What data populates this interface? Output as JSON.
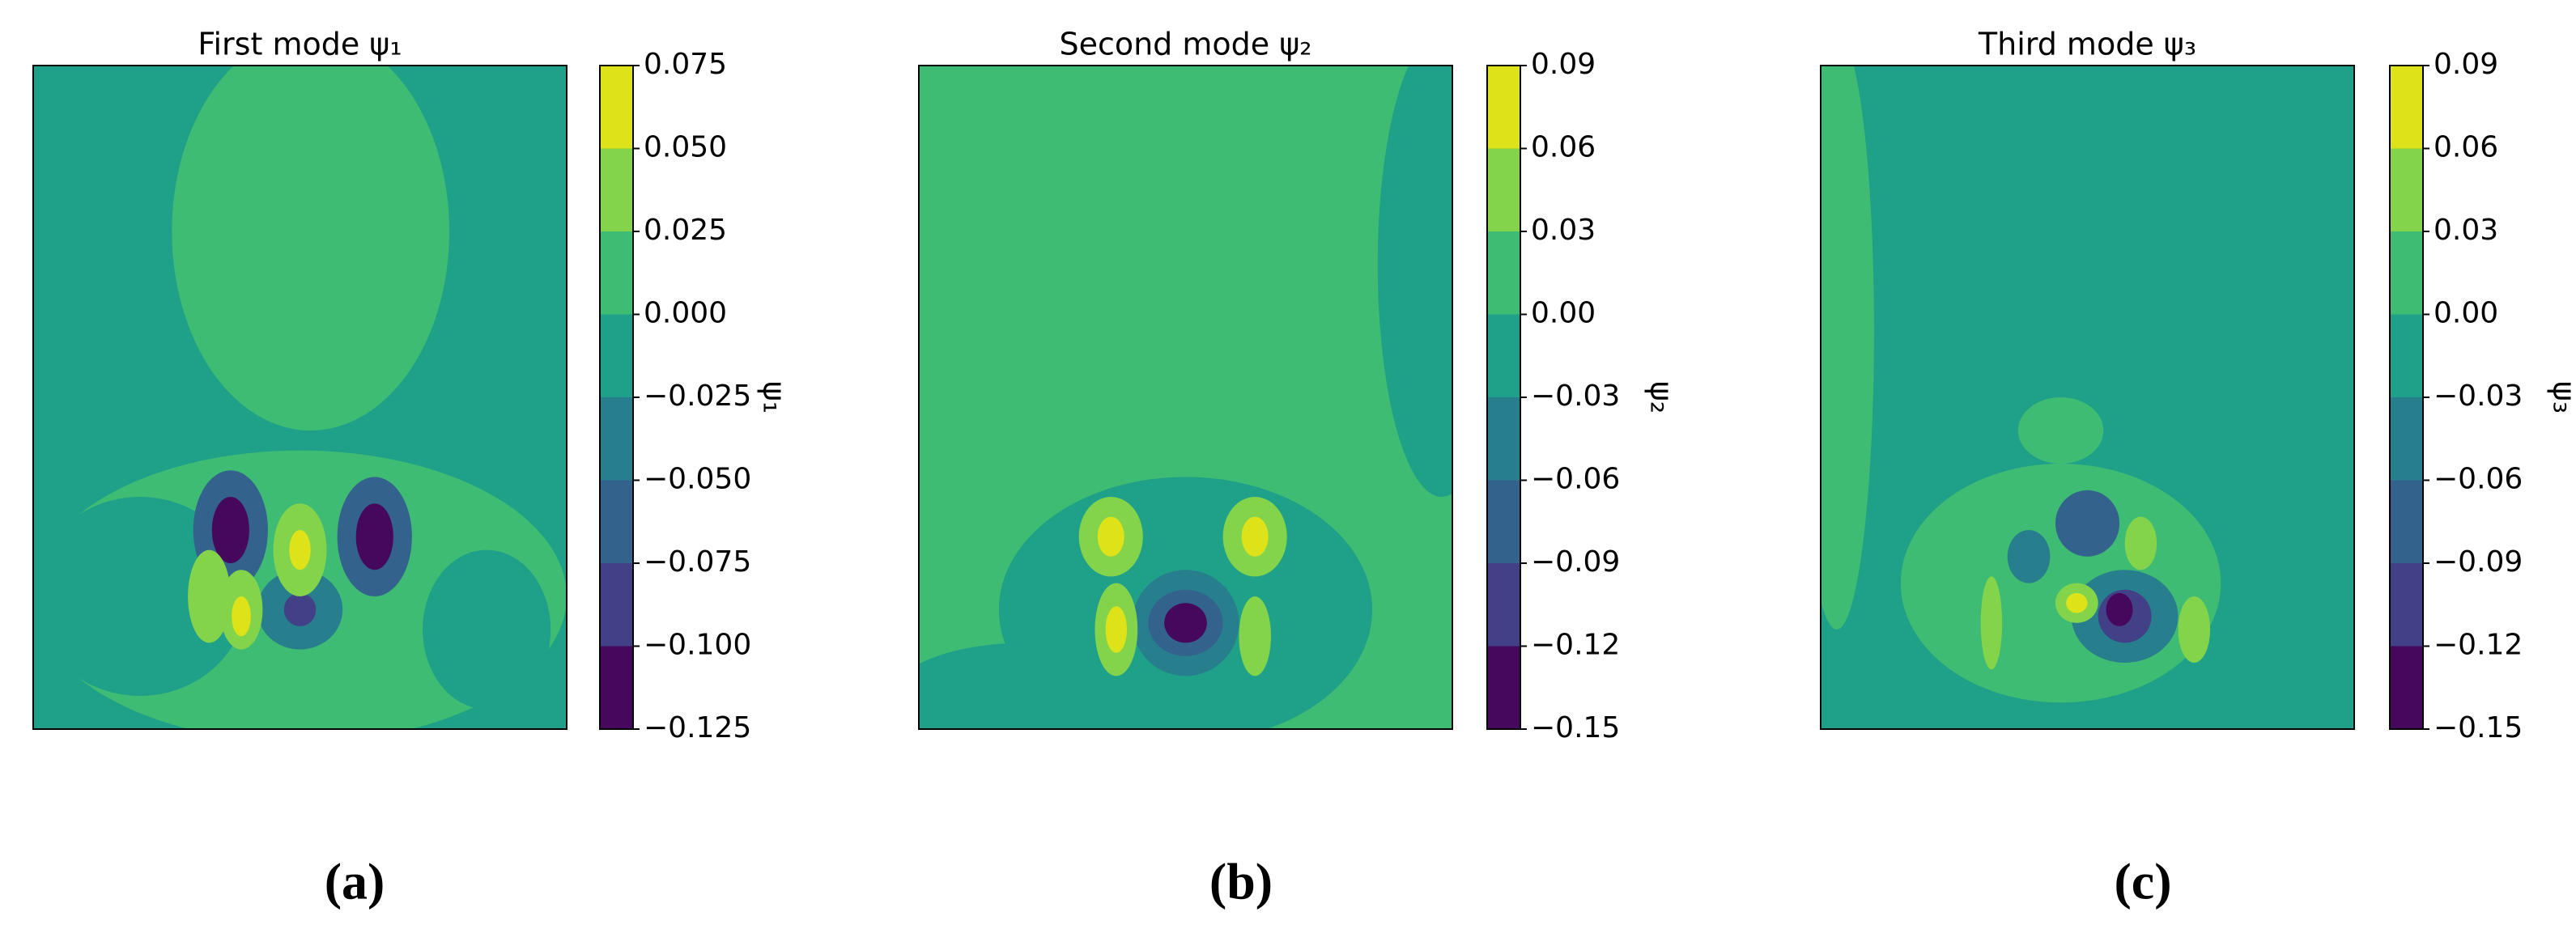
{
  "chart_data": [
    {
      "type": "contour",
      "title": "First mode ψ₁",
      "colorbar_label": "ψ₁",
      "panel_label": "(a)",
      "ylim": [
        -0.125,
        0.075
      ],
      "yticks": [
        {
          "value": -0.125,
          "label": "−0.125"
        },
        {
          "value": -0.1,
          "label": "−0.100"
        },
        {
          "value": -0.075,
          "label": "−0.075"
        },
        {
          "value": -0.05,
          "label": "−0.050"
        },
        {
          "value": -0.025,
          "label": "−0.025"
        },
        {
          "value": 0,
          "label": "0.000"
        },
        0.025,
        {
          "value": 0.05,
          "label": "0.050"
        },
        0.075
      ],
      "colors": [
        "#46085c",
        "#424086",
        "#33638d",
        "#277f8e",
        "#1fa088",
        "#3fbc73",
        "#84d44b",
        "#dde318"
      ]
    },
    {
      "type": "contour",
      "title": "Second mode ψ₂",
      "colorbar_label": "ψ₂",
      "panel_label": "(b)",
      "ylim": [
        -0.15,
        0.09
      ],
      "yticks": [
        {
          "value": -0.15,
          "label": "−0.15"
        },
        {
          "value": -0.12,
          "label": "−0.12"
        },
        {
          "value": -0.09,
          "label": "−0.09"
        },
        {
          "value": -0.06,
          "label": "−0.06"
        },
        {
          "value": -0.03,
          "label": "−0.03"
        },
        {
          "value": 0,
          "label": "0.00"
        },
        0.03,
        0.06,
        0.09
      ],
      "colors": [
        "#46085c",
        "#424086",
        "#33638d",
        "#277f8e",
        "#1fa088",
        "#3fbc73",
        "#84d44b",
        "#dde318"
      ]
    },
    {
      "type": "contour",
      "title": "Third mode ψ₃",
      "colorbar_label": "ψ₃",
      "panel_label": "(c)",
      "ylim": [
        -0.15,
        0.09
      ],
      "yticks": [
        {
          "value": -0.15,
          "label": "−0.15"
        },
        {
          "value": -0.12,
          "label": "−0.12"
        },
        {
          "value": -0.09,
          "label": "−0.09"
        },
        {
          "value": -0.06,
          "label": "−0.06"
        },
        {
          "value": -0.03,
          "label": "−0.03"
        },
        {
          "value": 0,
          "label": "0.00"
        },
        0.03,
        0.06,
        0.09
      ],
      "colors": [
        "#46085c",
        "#424086",
        "#33638d",
        "#277f8e",
        "#1fa088",
        "#3fbc73",
        "#84d44b",
        "#dde318"
      ]
    }
  ]
}
